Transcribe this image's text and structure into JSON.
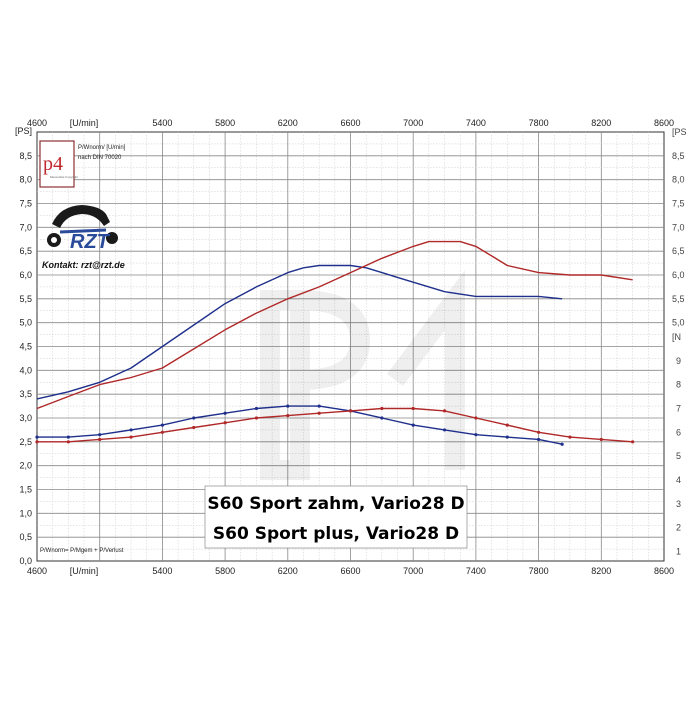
{
  "chart_data": {
    "type": "line",
    "x_unit_label": "[U/min]",
    "y_unit_label": "[PS]",
    "x_ticks": [
      4600,
      5400,
      5800,
      6200,
      6600,
      7000,
      7400,
      7800,
      8200,
      8600
    ],
    "x_tick_labels": [
      "4600",
      "5400",
      "5800",
      "6200",
      "6600",
      "7000",
      "7400",
      "7800",
      "8200",
      "8600"
    ],
    "xlim": [
      4600,
      8600
    ],
    "ylim": [
      0,
      9
    ],
    "y_ticks": [
      0,
      0.5,
      1,
      1.5,
      2,
      2.5,
      3,
      3.5,
      4,
      4.5,
      5,
      5.5,
      6,
      6.5,
      7,
      7.5,
      8,
      8.5
    ],
    "y_tick_labels": [
      "0,0",
      "0,5",
      "1,0",
      "1,5",
      "2,0",
      "2,5",
      "3,0",
      "3,5",
      "4,0",
      "4,5",
      "5,0",
      "5,5",
      "6,0",
      "6,5",
      "7,0",
      "7,5",
      "8,0",
      "8,5"
    ],
    "right_tick_labels": [
      "8,5",
      "8,0",
      "7,5",
      "7,0",
      "6,5",
      "6,0",
      "5,5",
      "5,0"
    ],
    "right_unit_label": "[PS",
    "right_unit_label2": "[N",
    "right_torque_ticks": [
      "9",
      "8",
      "7",
      "6",
      "5",
      "4",
      "3",
      "2",
      "1"
    ],
    "grid": true,
    "series": [
      {
        "name": "S60 Sport zahm, Vario28 D",
        "kind": "power",
        "color": "#1f2f8c",
        "x": [
          4600,
          4800,
          5000,
          5200,
          5400,
          5600,
          5800,
          6000,
          6200,
          6300,
          6400,
          6500,
          6600,
          6700,
          6800,
          6900,
          7000,
          7100,
          7200,
          7300,
          7400,
          7500,
          7600,
          7800,
          7950
        ],
        "y": [
          3.4,
          3.55,
          3.75,
          4.05,
          4.5,
          4.95,
          5.4,
          5.75,
          6.05,
          6.15,
          6.2,
          6.2,
          6.2,
          6.15,
          6.05,
          5.95,
          5.85,
          5.75,
          5.65,
          5.6,
          5.55,
          5.55,
          5.55,
          5.55,
          5.5
        ]
      },
      {
        "name": "S60 Sport plus, Vario28 D",
        "kind": "power",
        "color": "#b02828",
        "x": [
          4600,
          4800,
          5000,
          5200,
          5400,
          5600,
          5800,
          6000,
          6200,
          6400,
          6600,
          6800,
          7000,
          7100,
          7200,
          7300,
          7400,
          7500,
          7600,
          7800,
          8000,
          8200,
          8400
        ],
        "y": [
          3.2,
          3.45,
          3.7,
          3.85,
          4.05,
          4.45,
          4.85,
          5.2,
          5.5,
          5.75,
          6.05,
          6.35,
          6.6,
          6.7,
          6.7,
          6.7,
          6.6,
          6.4,
          6.2,
          6.05,
          6.0,
          6.0,
          5.9
        ]
      },
      {
        "name": "S60 Sport zahm, Vario28 D",
        "kind": "torque",
        "color": "#1f2f8c",
        "x": [
          4600,
          4800,
          5000,
          5200,
          5400,
          5600,
          5800,
          6000,
          6200,
          6400,
          6600,
          6800,
          7000,
          7200,
          7400,
          7600,
          7800,
          7950
        ],
        "y": [
          2.6,
          2.6,
          2.65,
          2.75,
          2.85,
          3.0,
          3.1,
          3.2,
          3.25,
          3.25,
          3.15,
          3.0,
          2.85,
          2.75,
          2.65,
          2.6,
          2.55,
          2.45
        ]
      },
      {
        "name": "S60 Sport plus, Vario28 D",
        "kind": "torque",
        "color": "#b02828",
        "x": [
          4600,
          4800,
          5000,
          5200,
          5400,
          5600,
          5800,
          6000,
          6200,
          6400,
          6600,
          6800,
          7000,
          7200,
          7400,
          7600,
          7800,
          8000,
          8200,
          8400
        ],
        "y": [
          2.5,
          2.5,
          2.55,
          2.6,
          2.7,
          2.8,
          2.9,
          3.0,
          3.05,
          3.1,
          3.15,
          3.2,
          3.2,
          3.15,
          3.0,
          2.85,
          2.7,
          2.6,
          2.55,
          2.5
        ]
      }
    ],
    "legend": [
      "S60 Sport zahm, Vario28 D",
      "S60 Sport plus, Vario28 D"
    ],
    "legend_placement": "bottom-center"
  },
  "header_note": {
    "line1": "P/Wnorm/ [U/min]",
    "line2": "nach DIN 70020"
  },
  "footer_note": "P/Wnorm= P/Mgem + P/Verlust",
  "logo": {
    "text": "p4",
    "small": "Messmittel Copyright"
  },
  "brand": {
    "text": "RZT",
    "contact": "Kontakt:  rzt@rzt.de"
  }
}
